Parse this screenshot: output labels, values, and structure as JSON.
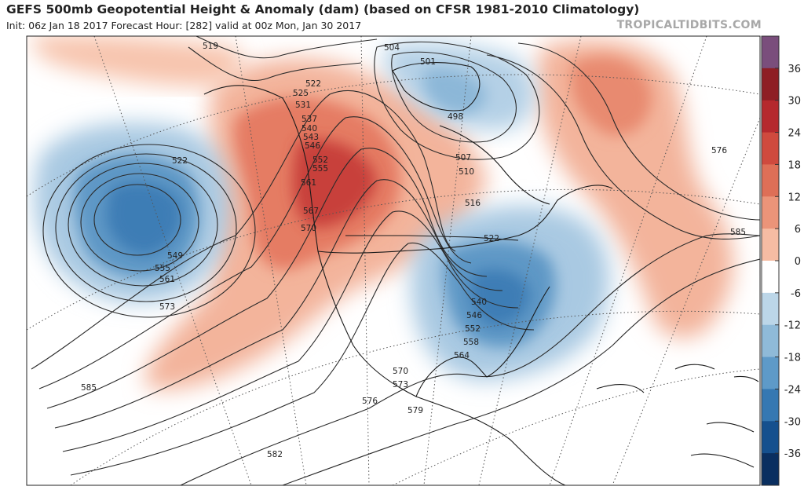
{
  "header": {
    "title": "GEFS 500mb Geopotential Height & Anomaly (dam) (based on CFSR 1981-2010 Climatology)",
    "subtitle": "Init: 06z Jan 18 2017   Forecast Hour: [282]   valid at 00z Mon, Jan 30 2017",
    "brand": "TROPICALTIDBITS.COM"
  },
  "colorbar": {
    "ticks": [
      "36",
      "30",
      "24",
      "18",
      "12",
      "6",
      "0",
      "-6",
      "-12",
      "-18",
      "-24",
      "-30",
      "-36"
    ],
    "colors": [
      "#7a4e7c",
      "#8e1e24",
      "#b5292e",
      "#cf4a3e",
      "#de6f57",
      "#eb9479",
      "#f6bca3",
      "#ffffff",
      "#bcd6e8",
      "#8fbad8",
      "#5e9ac8",
      "#3578b2",
      "#15508e",
      "#0a2f60"
    ]
  },
  "contour_labels": [
    {
      "id": "519",
      "text": "519"
    },
    {
      "id": "504",
      "text": "504"
    },
    {
      "id": "501",
      "text": "501"
    },
    {
      "id": "498",
      "text": "498"
    },
    {
      "id": "522a",
      "text": "522"
    },
    {
      "id": "525",
      "text": "525"
    },
    {
      "id": "531",
      "text": "531"
    },
    {
      "id": "537",
      "text": "537"
    },
    {
      "id": "540",
      "text": "540"
    },
    {
      "id": "543",
      "text": "543"
    },
    {
      "id": "546",
      "text": "546"
    },
    {
      "id": "552",
      "text": "552"
    },
    {
      "id": "555",
      "text": "555"
    },
    {
      "id": "561a",
      "text": "561"
    },
    {
      "id": "567",
      "text": "567"
    },
    {
      "id": "570",
      "text": "570"
    },
    {
      "id": "522b",
      "text": "522"
    },
    {
      "id": "549",
      "text": "549"
    },
    {
      "id": "555b",
      "text": "555"
    },
    {
      "id": "561b",
      "text": "561"
    },
    {
      "id": "573a",
      "text": "573"
    },
    {
      "id": "585a",
      "text": "585"
    },
    {
      "id": "507",
      "text": "507"
    },
    {
      "id": "510",
      "text": "510"
    },
    {
      "id": "516",
      "text": "516"
    },
    {
      "id": "522c",
      "text": "522"
    },
    {
      "id": "540b",
      "text": "540"
    },
    {
      "id": "546b",
      "text": "546"
    },
    {
      "id": "552b",
      "text": "552"
    },
    {
      "id": "558",
      "text": "558"
    },
    {
      "id": "564",
      "text": "564"
    },
    {
      "id": "570b",
      "text": "570"
    },
    {
      "id": "573b",
      "text": "573"
    },
    {
      "id": "576a",
      "text": "576"
    },
    {
      "id": "579",
      "text": "579"
    },
    {
      "id": "582",
      "text": "582"
    },
    {
      "id": "576b",
      "text": "576"
    },
    {
      "id": "585b",
      "text": "585"
    }
  ]
}
